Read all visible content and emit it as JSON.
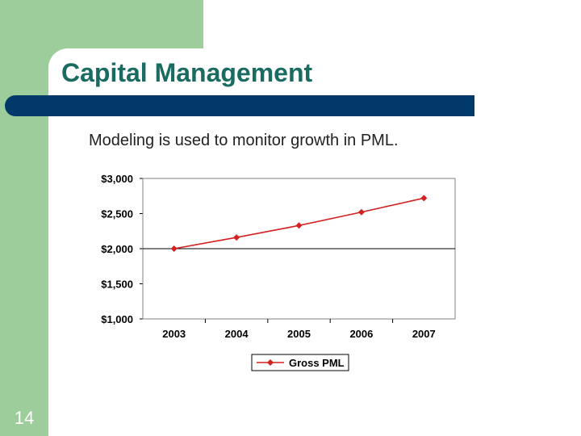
{
  "slide": {
    "title": "Capital Management",
    "subtitle": "Modeling is used to monitor growth in PML.",
    "number": "14"
  },
  "colors": {
    "green": "#9dcd9a",
    "navy": "#003a6b",
    "title_teal": "#1a6b62",
    "series_red": "#d42020"
  },
  "chart_data": {
    "type": "line",
    "categories": [
      "2003",
      "2004",
      "2005",
      "2006",
      "2007"
    ],
    "series": [
      {
        "name": "Gross PML",
        "values": [
          2000,
          2160,
          2330,
          2520,
          2720
        ]
      }
    ],
    "yticks": [
      "$1,000",
      "$1,500",
      "$2,000",
      "$2,500",
      "$3,000"
    ],
    "ylim": [
      1000,
      3000
    ],
    "grid": "horizontal line at $2,000",
    "legend_position": "bottom"
  }
}
